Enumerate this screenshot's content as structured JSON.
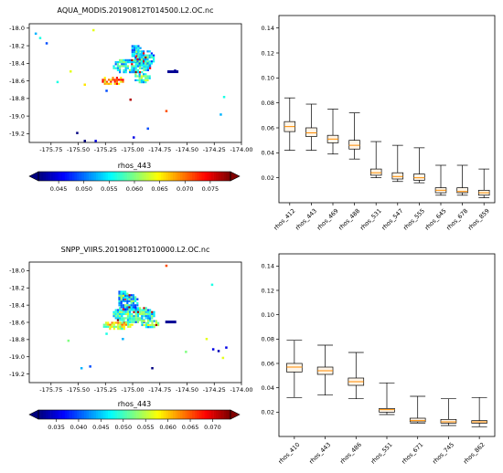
{
  "chart_data": [
    {
      "type": "heatmap",
      "title": "AQUA_MODIS.20190812T014500.L2.OC.nc",
      "x_ticks": [
        "-175.75",
        "-175.50",
        "-175.25",
        "-175.00",
        "-174.75",
        "-174.50",
        "-174.25",
        "-174.00"
      ],
      "y_ticks": [
        "-18.0",
        "-18.2",
        "-18.4",
        "-18.6",
        "-18.8",
        "-19.0",
        "-19.2"
      ],
      "xlim": [
        -175.95,
        -174.0
      ],
      "ylim": [
        -19.3,
        -17.95
      ],
      "colorbar": {
        "label": "rhos_443",
        "ticks": [
          "0.045",
          "0.050",
          "0.055",
          "0.060",
          "0.065",
          "0.070",
          "0.075"
        ],
        "range": [
          0.041,
          0.079
        ],
        "colormap": "jet"
      }
    },
    {
      "type": "box",
      "categories": [
        "rhos_412",
        "rhos_443",
        "rhos_469",
        "rhos_488",
        "rhos_531",
        "rhos_547",
        "rhos_555",
        "rhos_645",
        "rhos_678",
        "rhos_859"
      ],
      "ylim": [
        0.0,
        0.15
      ],
      "y_ticks": [
        "0.02",
        "0.04",
        "0.06",
        "0.08",
        "0.10",
        "0.12",
        "0.14"
      ],
      "boxes": [
        {
          "whislo": 0.042,
          "q1": 0.057,
          "med": 0.061,
          "q3": 0.065,
          "whishi": 0.084
        },
        {
          "whislo": 0.042,
          "q1": 0.053,
          "med": 0.056,
          "q3": 0.06,
          "whishi": 0.079
        },
        {
          "whislo": 0.039,
          "q1": 0.048,
          "med": 0.051,
          "q3": 0.054,
          "whishi": 0.075
        },
        {
          "whislo": 0.035,
          "q1": 0.043,
          "med": 0.046,
          "q3": 0.05,
          "whishi": 0.072
        },
        {
          "whislo": 0.02,
          "q1": 0.022,
          "med": 0.024,
          "q3": 0.027,
          "whishi": 0.049
        },
        {
          "whislo": 0.017,
          "q1": 0.019,
          "med": 0.021,
          "q3": 0.024,
          "whishi": 0.046
        },
        {
          "whislo": 0.016,
          "q1": 0.018,
          "med": 0.02,
          "q3": 0.023,
          "whishi": 0.044
        },
        {
          "whislo": 0.006,
          "q1": 0.008,
          "med": 0.01,
          "q3": 0.012,
          "whishi": 0.03
        },
        {
          "whislo": 0.006,
          "q1": 0.008,
          "med": 0.009,
          "q3": 0.012,
          "whishi": 0.03
        },
        {
          "whislo": 0.004,
          "q1": 0.006,
          "med": 0.008,
          "q3": 0.01,
          "whishi": 0.027
        }
      ],
      "box_fill": "#fff5e8",
      "median_color": "#ff8c00"
    },
    {
      "type": "heatmap",
      "title": "SNPP_VIIRS.20190812T010000.L2.OC.nc",
      "x_ticks": [
        "-175.75",
        "-175.50",
        "-175.25",
        "-175.00",
        "-174.75",
        "-174.50",
        "-174.25",
        "-174.00"
      ],
      "y_ticks": [
        "-18.0",
        "-18.2",
        "-18.4",
        "-18.6",
        "-18.8",
        "-19.0",
        "-19.2"
      ],
      "xlim": [
        -175.95,
        -174.0
      ],
      "ylim": [
        -19.3,
        -17.9
      ],
      "colorbar": {
        "label": "rhos_443",
        "ticks": [
          "0.035",
          "0.040",
          "0.045",
          "0.050",
          "0.055",
          "0.060",
          "0.065",
          "0.070"
        ],
        "range": [
          0.031,
          0.074
        ],
        "colormap": "jet"
      }
    },
    {
      "type": "box",
      "categories": [
        "rhos_410",
        "rhos_443",
        "rhos_486",
        "rhos_551",
        "rhos_671",
        "rhos_745",
        "rhos_862"
      ],
      "ylim": [
        0.0,
        0.15
      ],
      "y_ticks": [
        "0.02",
        "0.04",
        "0.06",
        "0.08",
        "0.10",
        "0.12",
        "0.14"
      ],
      "boxes": [
        {
          "whislo": 0.032,
          "q1": 0.053,
          "med": 0.057,
          "q3": 0.06,
          "whishi": 0.079
        },
        {
          "whislo": 0.034,
          "q1": 0.051,
          "med": 0.054,
          "q3": 0.057,
          "whishi": 0.075
        },
        {
          "whislo": 0.031,
          "q1": 0.042,
          "med": 0.045,
          "q3": 0.048,
          "whishi": 0.069
        },
        {
          "whislo": 0.018,
          "q1": 0.02,
          "med": 0.022,
          "q3": 0.023,
          "whishi": 0.044
        },
        {
          "whislo": 0.011,
          "q1": 0.012,
          "med": 0.013,
          "q3": 0.015,
          "whishi": 0.033
        },
        {
          "whislo": 0.009,
          "q1": 0.011,
          "med": 0.012,
          "q3": 0.014,
          "whishi": 0.031
        },
        {
          "whislo": 0.008,
          "q1": 0.011,
          "med": 0.012,
          "q3": 0.013,
          "whishi": 0.032
        }
      ],
      "box_fill": "#fff5e8",
      "median_color": "#ff8c00"
    }
  ]
}
